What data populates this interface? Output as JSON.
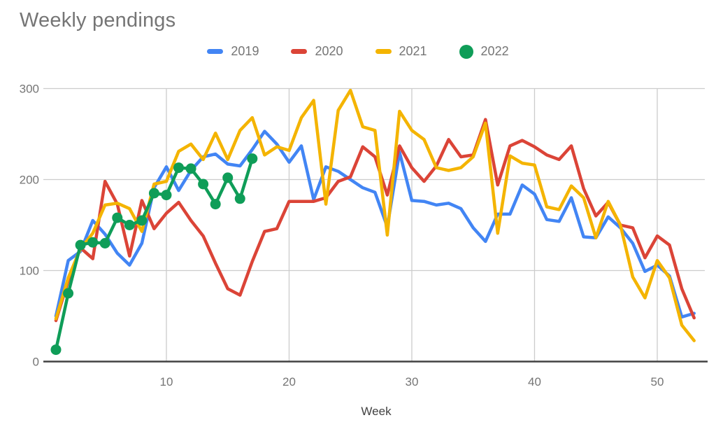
{
  "title": "Weekly pendings",
  "legend": [
    {
      "label": "2019",
      "color": "#4285F4",
      "marker": "line"
    },
    {
      "label": "2020",
      "color": "#DB4437",
      "marker": "line"
    },
    {
      "label": "2021",
      "color": "#F4B400",
      "marker": "line"
    },
    {
      "label": "2022",
      "color": "#0F9D58",
      "marker": "circle"
    }
  ],
  "axes": {
    "x": {
      "title": "Week",
      "ticks": [
        10,
        20,
        30,
        40,
        50
      ],
      "range": [
        1,
        53
      ]
    },
    "y": {
      "ticks": [
        0,
        100,
        200,
        300
      ],
      "range": [
        0,
        300
      ]
    }
  },
  "style_colors": {
    "grid": "#cccccc",
    "baseline": "#424242",
    "tick_text": "#757575",
    "title_text": "#757575",
    "axis_title_text": "#424242"
  },
  "chart_data": {
    "type": "line",
    "title": "Weekly pendings",
    "xlabel": "Week",
    "x_start": 1,
    "x_step": 1,
    "xlim": [
      1,
      53
    ],
    "ylim": [
      0,
      300
    ],
    "grid": true,
    "legend_position": "top",
    "series": [
      {
        "name": "2019",
        "color": "#4285F4",
        "marker": "none",
        "values": [
          50,
          111,
          121,
          155,
          140,
          119,
          106,
          130,
          191,
          214,
          188,
          210,
          225,
          228,
          217,
          215,
          233,
          253,
          239,
          219,
          237,
          178,
          214,
          209,
          200,
          191,
          186,
          148,
          230,
          177,
          176,
          172,
          174,
          168,
          147,
          132,
          162,
          162,
          194,
          184,
          156,
          154,
          180,
          137,
          136,
          159,
          147,
          130,
          99,
          106,
          94,
          49,
          53
        ]
      },
      {
        "name": "2020",
        "color": "#DB4437",
        "marker": "none",
        "values": [
          45,
          89,
          125,
          113,
          198,
          173,
          116,
          177,
          146,
          163,
          175,
          155,
          138,
          108,
          80,
          73,
          110,
          143,
          146,
          176,
          176,
          176,
          180,
          198,
          203,
          236,
          225,
          183,
          237,
          213,
          198,
          215,
          244,
          225,
          227,
          266,
          194,
          237,
          243,
          236,
          227,
          222,
          237,
          190,
          160,
          175,
          150,
          147,
          114,
          138,
          128,
          80,
          48
        ]
      },
      {
        "name": "2021",
        "color": "#F4B400",
        "marker": "none",
        "values": [
          47,
          92,
          124,
          141,
          172,
          174,
          168,
          143,
          195,
          198,
          231,
          239,
          222,
          251,
          222,
          254,
          268,
          227,
          236,
          232,
          268,
          287,
          173,
          276,
          298,
          258,
          254,
          139,
          275,
          254,
          244,
          213,
          210,
          213,
          225,
          262,
          141,
          226,
          218,
          216,
          170,
          167,
          193,
          180,
          136,
          176,
          150,
          93,
          70,
          111,
          92,
          40,
          23
        ]
      },
      {
        "name": "2022",
        "color": "#0F9D58",
        "marker": "circle",
        "values": [
          13,
          75,
          128,
          131,
          130,
          158,
          150,
          155,
          185,
          183,
          213,
          212,
          195,
          173,
          202,
          179,
          223
        ]
      }
    ]
  }
}
